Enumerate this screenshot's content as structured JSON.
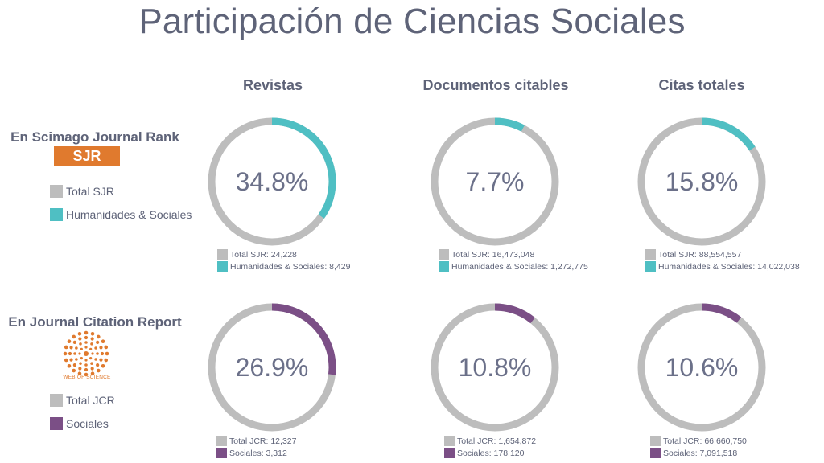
{
  "title": "Participación de Ciencias Sociales",
  "columns": [
    "Revistas",
    "Documentos citables",
    "Citas totales"
  ],
  "colors": {
    "total": "#bdbdbd",
    "sjr": "#4fbfc3",
    "jcr": "#7b4f86"
  },
  "rows": [
    {
      "title": "En Scimago Journal Rank",
      "logo_text": "SJR",
      "legend": [
        "Total SJR",
        "Humanidades & Sociales"
      ]
    },
    {
      "title": "En Journal Citation Report",
      "logo_text": "WEB OF SCIENCE",
      "legend": [
        "Total JCR",
        "Sociales"
      ]
    }
  ],
  "chart_data": [
    {
      "type": "pie",
      "title": "Revistas",
      "center_label": "34.8%",
      "fraction": 0.348,
      "labels": [
        "Total SJR: 24,228",
        "Humanidades & Sociales: 8,429"
      ],
      "values": [
        24228,
        8429
      ]
    },
    {
      "type": "pie",
      "title": "Documentos citables",
      "center_label": "7.7%",
      "fraction": 0.077,
      "labels": [
        "Total SJR: 16,473,048",
        "Humanidades & Sociales: 1,272,775"
      ],
      "values": [
        16473048,
        1272775
      ]
    },
    {
      "type": "pie",
      "title": "Citas totales",
      "center_label": "15.8%",
      "fraction": 0.158,
      "labels": [
        "Total SJR: 88,554,557",
        "Humanidades & Sociales: 14,022,038"
      ],
      "values": [
        88554557,
        14022038
      ]
    },
    {
      "type": "pie",
      "title": "Revistas",
      "center_label": "26.9%",
      "fraction": 0.269,
      "labels": [
        "Total JCR: 12,327",
        "Sociales: 3,312"
      ],
      "values": [
        12327,
        3312
      ]
    },
    {
      "type": "pie",
      "title": "Documentos citables",
      "center_label": "10.8%",
      "fraction": 0.108,
      "labels": [
        "Total JCR: 1,654,872",
        "Sociales: 178,120"
      ],
      "values": [
        1654872,
        178120
      ]
    },
    {
      "type": "pie",
      "title": "Citas totales",
      "center_label": "10.6%",
      "fraction": 0.106,
      "labels": [
        "Total JCR: 66,660,750",
        "Sociales: 7,091,518"
      ],
      "values": [
        66660750,
        7091518
      ]
    }
  ]
}
